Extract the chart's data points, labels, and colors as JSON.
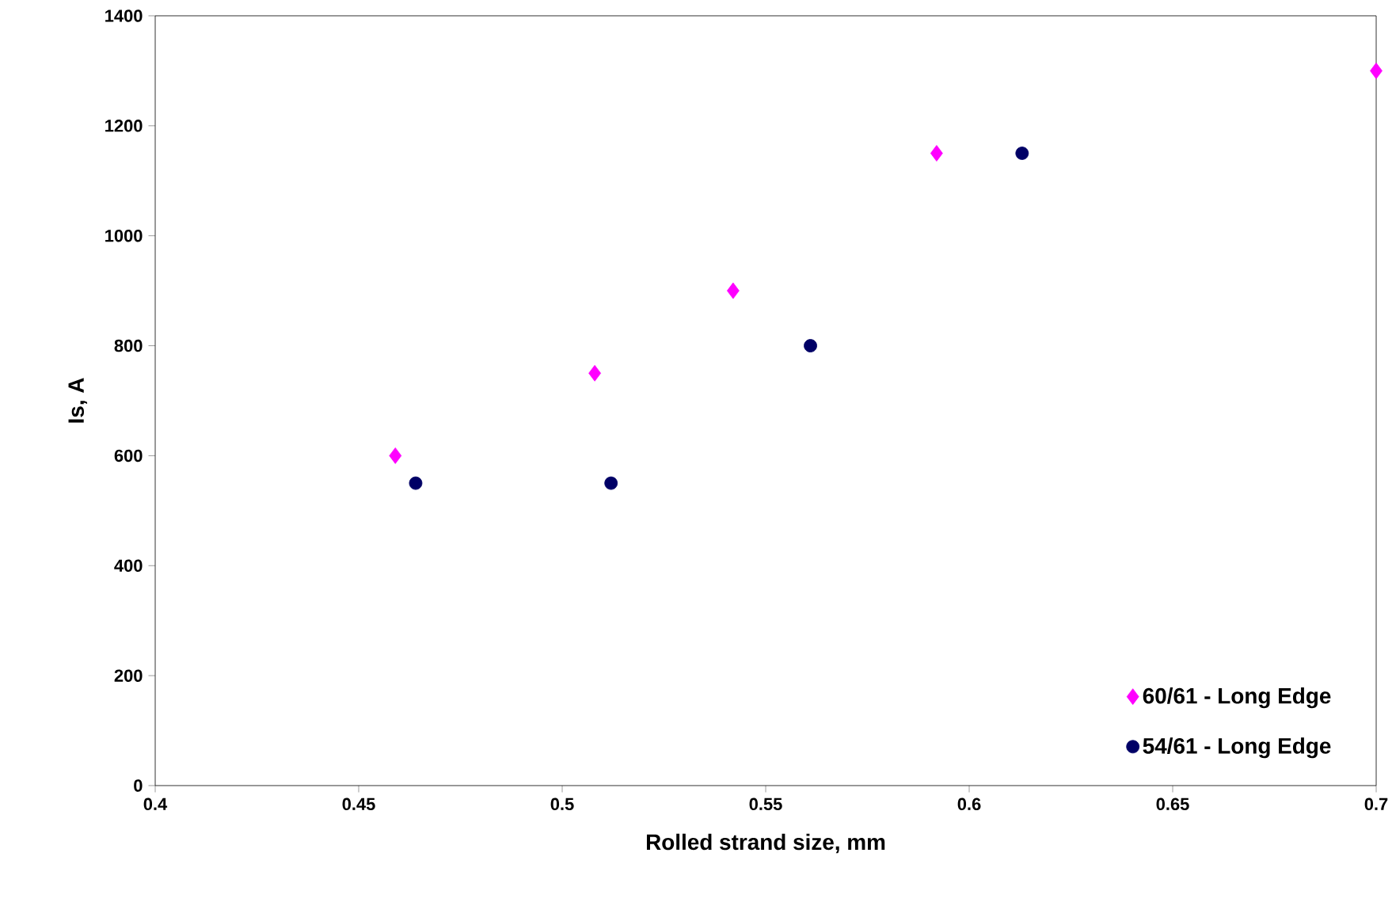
{
  "chart_data": {
    "type": "scatter",
    "xlabel": "Rolled strand size, mm",
    "ylabel": "Is, A",
    "xlim": [
      0.4,
      0.7
    ],
    "ylim": [
      0,
      1400
    ],
    "xticks": [
      0.4,
      0.45,
      0.5,
      0.55,
      0.6,
      0.65,
      0.7
    ],
    "yticks": [
      0,
      200,
      400,
      600,
      800,
      1000,
      1200,
      1400
    ],
    "legend": "bottom right",
    "series": [
      {
        "name": "60/61 - Long Edge",
        "color": "#ff00ff",
        "marker": "diamond",
        "x": [
          0.459,
          0.508,
          0.542,
          0.592,
          0.7
        ],
        "values": [
          600,
          750,
          900,
          1150,
          1300
        ]
      },
      {
        "name": "54/61 - Long Edge",
        "color": "#000066",
        "marker": "circle",
        "x": [
          0.464,
          0.512,
          0.561,
          0.613
        ],
        "values": [
          550,
          550,
          800,
          1150
        ]
      }
    ]
  }
}
